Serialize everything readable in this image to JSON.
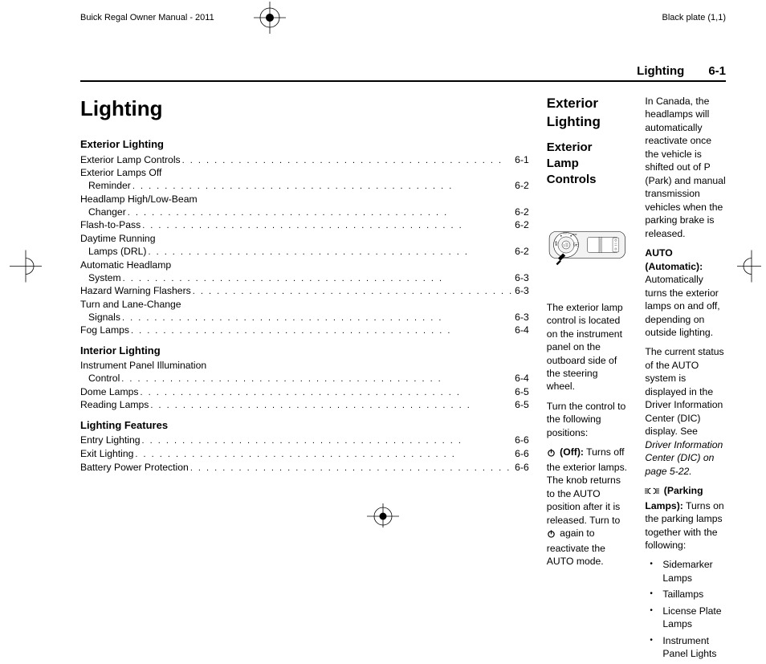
{
  "header": {
    "left": "Buick Regal Owner Manual - 2011",
    "right": "Black plate (1,1)",
    "section": "Lighting",
    "page": "6-1"
  },
  "title": "Lighting",
  "toc": [
    {
      "section": "Exterior Lighting",
      "items": [
        {
          "label": "Exterior Lamp Controls",
          "page": "6-1"
        },
        {
          "label": "Exterior Lamps Off",
          "cont": "Reminder",
          "page": "6-2"
        },
        {
          "label": "Headlamp High/Low-Beam",
          "cont": "Changer",
          "page": "6-2"
        },
        {
          "label": "Flash-to-Pass",
          "page": "6-2"
        },
        {
          "label": "Daytime Running",
          "cont": "Lamps (DRL)",
          "page": "6-2"
        },
        {
          "label": "Automatic Headlamp",
          "cont": "System",
          "page": "6-3"
        },
        {
          "label": "Hazard Warning Flashers",
          "page": "6-3"
        },
        {
          "label": "Turn and Lane-Change",
          "cont": "Signals",
          "page": "6-3"
        },
        {
          "label": "Fog Lamps",
          "page": "6-4"
        }
      ]
    },
    {
      "section": "Interior Lighting",
      "items": [
        {
          "label": "Instrument Panel Illumination",
          "cont": "Control",
          "page": "6-4"
        },
        {
          "label": "Dome Lamps",
          "page": "6-5"
        },
        {
          "label": "Reading Lamps",
          "page": "6-5"
        }
      ]
    },
    {
      "section": "Lighting Features",
      "items": [
        {
          "label": "Entry Lighting",
          "page": "6-6"
        },
        {
          "label": "Exit Lighting",
          "page": "6-6"
        },
        {
          "label": "Battery Power Protection",
          "page": "6-6"
        }
      ]
    }
  ],
  "col2": {
    "h2": "Exterior Lighting",
    "h3": "Exterior Lamp Controls",
    "p1": "The exterior lamp control is located on the instrument panel on the outboard side of the steering wheel.",
    "p2": "Turn the control to the following positions:",
    "off_label": " (Off):",
    "off_text": "  Turns off the exterior lamps. The knob returns to the AUTO position after it is released. Turn to ",
    "off_text2": " again to reactivate the AUTO mode."
  },
  "col3": {
    "p1": "In Canada, the headlamps will automatically reactivate once the vehicle is shifted out of P (Park) and manual transmission vehicles when the parking brake is released.",
    "auto_label": "AUTO (Automatic):",
    "auto_text": "  Automatically turns the exterior lamps on and off, depending on outside lighting.",
    "p3a": "The current status of the AUTO system is displayed in the Driver Information Center (DIC) display. See ",
    "p3b": "Driver Information Center (DIC) on page 5-22.",
    "park_label": " (Parking Lamps):",
    "park_text": "  Turns on the parking lamps together with the following:",
    "bullets": [
      "Sidemarker Lamps",
      "Taillamps",
      "License Plate Lamps",
      "Instrument Panel Lights"
    ]
  },
  "colors": {
    "text": "#000000",
    "bg": "#ffffff",
    "grey": "#9a9a9a"
  }
}
